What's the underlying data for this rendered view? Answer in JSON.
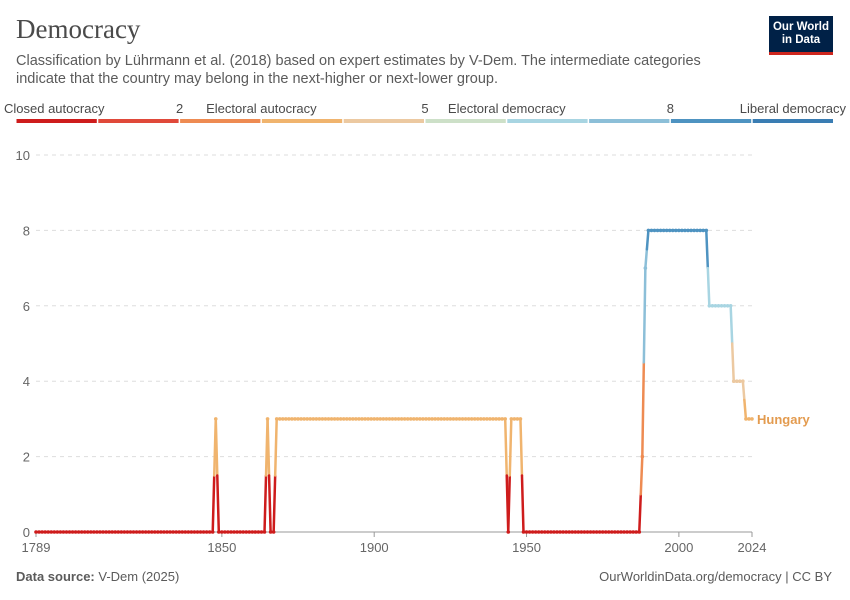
{
  "header": {
    "title": "Democracy",
    "subtitle": "Classification by Lührmann et al. (2018) based on expert estimates by V-Dem. The intermediate categories indicate that the country may belong in the next-higher or next-lower group."
  },
  "logo": {
    "line1": "Our World",
    "line2": "in Data"
  },
  "footer": {
    "source_label": "Data source:",
    "source_value": "V-Dem (2025)",
    "url_license": "OurWorldinData.org/democracy | CC BY"
  },
  "legend": {
    "labels": [
      {
        "text": "Closed autocracy",
        "value": 0
      },
      {
        "text": "2",
        "value": 2
      },
      {
        "text": "Electoral autocracy",
        "value": 3
      },
      {
        "text": "5",
        "value": 5
      },
      {
        "text": "Electoral democracy",
        "value": 6
      },
      {
        "text": "8",
        "value": 8
      },
      {
        "text": "Liberal democracy",
        "value": 9
      }
    ],
    "bins": [
      {
        "from": 0,
        "to": 1,
        "color": "#ce1c1c"
      },
      {
        "from": 1,
        "to": 2,
        "color": "#e0493a"
      },
      {
        "from": 2,
        "to": 3,
        "color": "#ee8b52"
      },
      {
        "from": 3,
        "to": 4,
        "color": "#f0b46e"
      },
      {
        "from": 4,
        "to": 5,
        "color": "#ecc9a1"
      },
      {
        "from": 5,
        "to": 6,
        "color": "#cde0c8"
      },
      {
        "from": 6,
        "to": 7,
        "color": "#a8d5e2"
      },
      {
        "from": 7,
        "to": 8,
        "color": "#8cbfd8"
      },
      {
        "from": 8,
        "to": 9,
        "color": "#4e93c1"
      },
      {
        "from": 9,
        "to": 10,
        "color": "#3a7db3"
      }
    ]
  },
  "chart_data": {
    "type": "line",
    "title": "Democracy",
    "xlabel": "",
    "ylabel": "",
    "xlim": [
      1789,
      2024
    ],
    "ylim": [
      0,
      10
    ],
    "x_ticks": [
      1789,
      1850,
      1900,
      1950,
      2000,
      2024
    ],
    "y_ticks": [
      0,
      2,
      4,
      6,
      8,
      10
    ],
    "grid": "horizontal dashed",
    "series": [
      {
        "name": "Hungary",
        "label_color": "#e39b4f",
        "points": [
          [
            1789,
            0
          ],
          [
            1847,
            0
          ],
          [
            1848,
            3
          ],
          [
            1849,
            0
          ],
          [
            1864,
            0
          ],
          [
            1865,
            3
          ],
          [
            1866,
            0
          ],
          [
            1867,
            0
          ],
          [
            1868,
            3
          ],
          [
            1943,
            3
          ],
          [
            1944,
            0
          ],
          [
            1945,
            3
          ],
          [
            1948,
            3
          ],
          [
            1949,
            0
          ],
          [
            1987,
            0
          ],
          [
            1988,
            2
          ],
          [
            1989,
            7
          ],
          [
            1990,
            8
          ],
          [
            2009,
            8
          ],
          [
            2010,
            6
          ],
          [
            2017,
            6
          ],
          [
            2018,
            4
          ],
          [
            2021,
            4
          ],
          [
            2022,
            3
          ],
          [
            2024,
            3
          ]
        ]
      }
    ]
  }
}
